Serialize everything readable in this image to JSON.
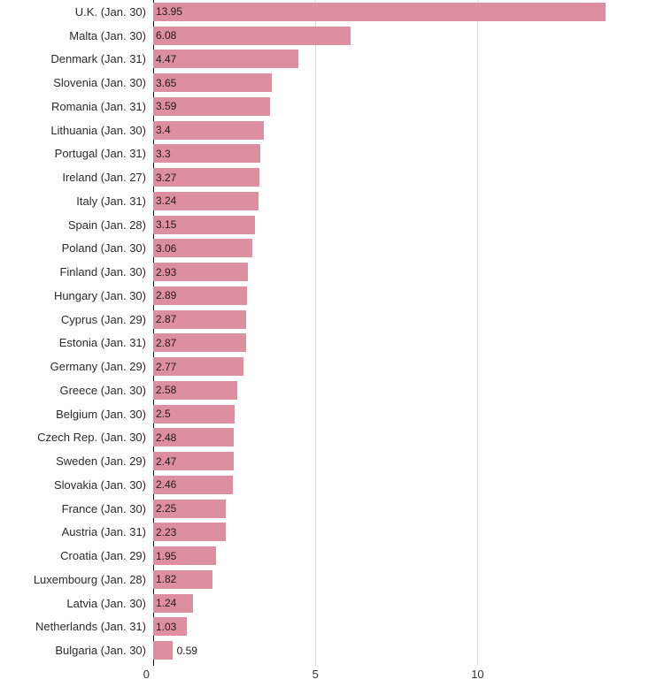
{
  "chart_data": {
    "type": "bar",
    "orientation": "horizontal",
    "title": "",
    "xlabel": "",
    "ylabel": "",
    "categories": [
      "U.K. (Jan. 30)",
      "Malta (Jan. 30)",
      "Denmark (Jan. 31)",
      "Slovenia (Jan. 30)",
      "Romania (Jan. 31)",
      "Lithuania (Jan. 30)",
      "Portugal (Jan. 31)",
      "Ireland (Jan. 27)",
      "Italy (Jan. 31)",
      "Spain (Jan. 28)",
      "Poland (Jan. 30)",
      "Finland (Jan. 30)",
      "Hungary (Jan. 30)",
      "Cyprus (Jan. 29)",
      "Estonia (Jan. 31)",
      "Germany (Jan. 29)",
      "Greece (Jan. 30)",
      "Belgium (Jan. 30)",
      "Czech Rep. (Jan. 30)",
      "Sweden (Jan. 29)",
      "Slovakia (Jan. 30)",
      "France (Jan. 30)",
      "Austria (Jan. 31)",
      "Croatia (Jan. 29)",
      "Luxembourg (Jan. 28)",
      "Latvia (Jan. 30)",
      "Netherlands (Jan. 31)",
      "Bulgaria (Jan. 30)"
    ],
    "values": [
      13.95,
      6.08,
      4.47,
      3.65,
      3.59,
      3.4,
      3.3,
      3.27,
      3.24,
      3.15,
      3.06,
      2.93,
      2.89,
      2.87,
      2.87,
      2.77,
      2.58,
      2.5,
      2.48,
      2.47,
      2.46,
      2.25,
      2.23,
      1.95,
      1.82,
      1.24,
      1.03,
      0.59
    ],
    "value_labels": [
      "13.95",
      "6.08",
      "4.47",
      "3.65",
      "3.59",
      "3.4",
      "3.3",
      "3.27",
      "3.24",
      "3.15",
      "3.06",
      "2.93",
      "2.89",
      "2.87",
      "2.87",
      "2.77",
      "2.58",
      "2.5",
      "2.48",
      "2.47",
      "2.46",
      "2.25",
      "2.23",
      "1.95",
      "1.82",
      "1.24",
      "1.03",
      "0.59"
    ],
    "xlim": [
      0,
      15.5
    ],
    "x_ticks": [
      0,
      5,
      10
    ],
    "x_tick_labels": [
      "0",
      "5",
      "10"
    ],
    "grid": true,
    "legend": false,
    "bar_color": "#de8f9f",
    "axis_line_color": "#111111",
    "gridline_color": "#dcdcdc",
    "label_color": "#2b2b2b",
    "value_label_color": "#1c1c1c"
  }
}
